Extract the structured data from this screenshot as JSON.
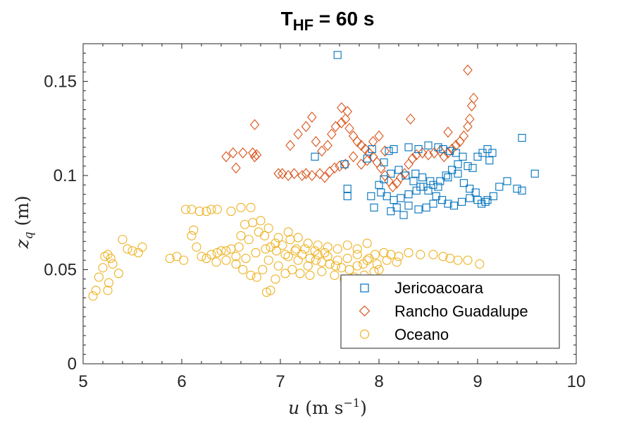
{
  "chart_data": {
    "type": "scatter",
    "title": {
      "main": "T",
      "sub": "HF",
      "rest": " = 60 s"
    },
    "xlabel": {
      "var": "u",
      "unit_open": " (m s",
      "exp": "−1",
      "unit_close": ")"
    },
    "ylabel": {
      "var": "z",
      "sub": "q",
      "unit": " (m)"
    },
    "xlim": [
      5,
      10
    ],
    "ylim": [
      0,
      0.17
    ],
    "xticks": [
      5,
      6,
      7,
      8,
      9,
      10
    ],
    "xtick_labels": [
      "5",
      "6",
      "7",
      "8",
      "9",
      "10"
    ],
    "yticks": [
      0,
      0.05,
      0.1,
      0.15
    ],
    "ytick_labels": [
      "0",
      "0.05",
      "0.1",
      "0.15"
    ],
    "grid": false,
    "legend_position": "bottom-right",
    "series": [
      {
        "name": "Jericoacoara",
        "marker": "square",
        "color": "#0072BD",
        "points": [
          [
            7.58,
            0.164
          ],
          [
            9.45,
            0.12
          ],
          [
            9.58,
            0.101
          ],
          [
            7.35,
            0.11
          ],
          [
            7.65,
            0.106
          ],
          [
            7.68,
            0.093
          ],
          [
            7.88,
            0.109
          ],
          [
            7.93,
            0.114
          ],
          [
            8.05,
            0.107
          ],
          [
            8.1,
            0.113
          ],
          [
            8.15,
            0.114
          ],
          [
            8.3,
            0.115
          ],
          [
            8.4,
            0.114
          ],
          [
            8.5,
            0.116
          ],
          [
            8.6,
            0.115
          ],
          [
            8.65,
            0.114
          ],
          [
            8.72,
            0.113
          ],
          [
            8.78,
            0.112
          ],
          [
            8.85,
            0.11
          ],
          [
            8.9,
            0.105
          ],
          [
            9.0,
            0.11
          ],
          [
            9.05,
            0.112
          ],
          [
            9.1,
            0.114
          ],
          [
            9.15,
            0.112
          ],
          [
            9.12,
            0.108
          ],
          [
            8.95,
            0.104
          ],
          [
            8.8,
            0.101
          ],
          [
            8.7,
            0.099
          ],
          [
            8.62,
            0.097
          ],
          [
            8.55,
            0.095
          ],
          [
            8.45,
            0.094
          ],
          [
            8.38,
            0.092
          ],
          [
            8.3,
            0.09
          ],
          [
            8.22,
            0.088
          ],
          [
            8.15,
            0.087
          ],
          [
            8.08,
            0.089
          ],
          [
            8.02,
            0.091
          ],
          [
            8.0,
            0.095
          ],
          [
            8.05,
            0.098
          ],
          [
            8.12,
            0.101
          ],
          [
            8.2,
            0.103
          ],
          [
            8.27,
            0.1
          ],
          [
            8.35,
            0.097
          ],
          [
            8.42,
            0.094
          ],
          [
            8.5,
            0.092
          ],
          [
            8.58,
            0.089
          ],
          [
            8.64,
            0.087
          ],
          [
            8.7,
            0.085
          ],
          [
            8.76,
            0.084
          ],
          [
            8.84,
            0.086
          ],
          [
            8.92,
            0.088
          ],
          [
            9.0,
            0.087
          ],
          [
            9.08,
            0.086
          ],
          [
            9.16,
            0.089
          ],
          [
            9.22,
            0.094
          ],
          [
            9.3,
            0.097
          ],
          [
            9.4,
            0.093
          ],
          [
            9.45,
            0.092
          ],
          [
            8.55,
            0.085
          ],
          [
            8.48,
            0.083
          ],
          [
            8.4,
            0.082
          ],
          [
            8.3,
            0.084
          ],
          [
            8.25,
            0.079
          ],
          [
            8.12,
            0.081
          ],
          [
            8.18,
            0.083
          ],
          [
            7.95,
            0.083
          ],
          [
            7.92,
            0.089
          ],
          [
            7.68,
            0.089
          ],
          [
            8.68,
            0.1
          ],
          [
            8.74,
            0.103
          ],
          [
            8.8,
            0.106
          ],
          [
            8.86,
            0.096
          ],
          [
            8.92,
            0.093
          ],
          [
            8.98,
            0.091
          ],
          [
            9.04,
            0.085
          ],
          [
            9.1,
            0.087
          ],
          [
            8.6,
            0.094
          ],
          [
            8.52,
            0.097
          ],
          [
            8.44,
            0.099
          ],
          [
            8.37,
            0.101
          ]
        ]
      },
      {
        "name": "Rancho Guadalupe",
        "marker": "diamond",
        "color": "#D95319",
        "points": [
          [
            6.45,
            0.11
          ],
          [
            6.52,
            0.112
          ],
          [
            6.55,
            0.104
          ],
          [
            6.62,
            0.112
          ],
          [
            6.72,
            0.112
          ],
          [
            6.74,
            0.11
          ],
          [
            6.76,
            0.111
          ],
          [
            6.74,
            0.127
          ],
          [
            6.98,
            0.101
          ],
          [
            7.02,
            0.101
          ],
          [
            7.08,
            0.1
          ],
          [
            7.14,
            0.101
          ],
          [
            7.22,
            0.1
          ],
          [
            7.26,
            0.101
          ],
          [
            7.32,
            0.1
          ],
          [
            7.4,
            0.101
          ],
          [
            7.45,
            0.099
          ],
          [
            7.5,
            0.102
          ],
          [
            7.55,
            0.104
          ],
          [
            7.6,
            0.105
          ],
          [
            7.66,
            0.106
          ],
          [
            7.42,
            0.113
          ],
          [
            7.36,
            0.118
          ],
          [
            7.48,
            0.116
          ],
          [
            7.52,
            0.122
          ],
          [
            7.56,
            0.126
          ],
          [
            7.62,
            0.128
          ],
          [
            7.66,
            0.13
          ],
          [
            7.7,
            0.125
          ],
          [
            7.74,
            0.121
          ],
          [
            7.78,
            0.118
          ],
          [
            7.82,
            0.116
          ],
          [
            7.86,
            0.114
          ],
          [
            7.9,
            0.112
          ],
          [
            7.94,
            0.11
          ],
          [
            7.98,
            0.107
          ],
          [
            8.02,
            0.104
          ],
          [
            8.06,
            0.1
          ],
          [
            8.1,
            0.097
          ],
          [
            8.14,
            0.094
          ],
          [
            8.18,
            0.096
          ],
          [
            8.22,
            0.099
          ],
          [
            8.26,
            0.101
          ],
          [
            8.3,
            0.106
          ],
          [
            8.34,
            0.109
          ],
          [
            8.38,
            0.111
          ],
          [
            8.44,
            0.112
          ],
          [
            8.5,
            0.111
          ],
          [
            8.56,
            0.112
          ],
          [
            8.62,
            0.113
          ],
          [
            8.66,
            0.11
          ],
          [
            8.7,
            0.112
          ],
          [
            8.74,
            0.114
          ],
          [
            8.78,
            0.116
          ],
          [
            8.82,
            0.118
          ],
          [
            8.86,
            0.121
          ],
          [
            8.9,
            0.126
          ],
          [
            8.92,
            0.13
          ],
          [
            8.94,
            0.137
          ],
          [
            8.96,
            0.141
          ],
          [
            8.9,
            0.156
          ],
          [
            8.32,
            0.13
          ],
          [
            8.7,
            0.123
          ],
          [
            7.62,
            0.136
          ],
          [
            7.68,
            0.134
          ],
          [
            7.1,
            0.116
          ],
          [
            7.18,
            0.122
          ],
          [
            7.26,
            0.126
          ],
          [
            7.32,
            0.131
          ],
          [
            7.74,
            0.11
          ],
          [
            7.82,
            0.106
          ],
          [
            7.88,
            0.108
          ],
          [
            7.94,
            0.118
          ],
          [
            8.0,
            0.121
          ],
          [
            8.06,
            0.113
          ]
        ]
      },
      {
        "name": "Oceano",
        "marker": "circle",
        "color": "#EDB120",
        "points": [
          [
            5.1,
            0.036
          ],
          [
            5.13,
            0.039
          ],
          [
            5.16,
            0.046
          ],
          [
            5.2,
            0.051
          ],
          [
            5.22,
            0.057
          ],
          [
            5.25,
            0.058
          ],
          [
            5.28,
            0.056
          ],
          [
            5.25,
            0.039
          ],
          [
            5.26,
            0.043
          ],
          [
            5.3,
            0.053
          ],
          [
            5.36,
            0.048
          ],
          [
            5.4,
            0.066
          ],
          [
            5.45,
            0.061
          ],
          [
            5.5,
            0.06
          ],
          [
            5.56,
            0.059
          ],
          [
            5.6,
            0.062
          ],
          [
            5.88,
            0.056
          ],
          [
            5.95,
            0.057
          ],
          [
            6.02,
            0.055
          ],
          [
            6.04,
            0.082
          ],
          [
            6.1,
            0.082
          ],
          [
            6.18,
            0.081
          ],
          [
            6.25,
            0.081
          ],
          [
            6.3,
            0.082
          ],
          [
            6.36,
            0.082
          ],
          [
            6.5,
            0.081
          ],
          [
            6.6,
            0.083
          ],
          [
            6.7,
            0.083
          ],
          [
            6.1,
            0.068
          ],
          [
            6.12,
            0.071
          ],
          [
            6.15,
            0.062
          ],
          [
            6.2,
            0.057
          ],
          [
            6.3,
            0.058
          ],
          [
            6.36,
            0.059
          ],
          [
            6.45,
            0.06
          ],
          [
            6.55,
            0.057
          ],
          [
            6.6,
            0.068
          ],
          [
            6.64,
            0.074
          ],
          [
            6.72,
            0.075
          ],
          [
            6.8,
            0.076
          ],
          [
            6.84,
            0.068
          ],
          [
            6.9,
            0.062
          ],
          [
            6.96,
            0.06
          ],
          [
            7.02,
            0.063
          ],
          [
            7.1,
            0.066
          ],
          [
            7.16,
            0.061
          ],
          [
            7.22,
            0.058
          ],
          [
            7.3,
            0.056
          ],
          [
            7.36,
            0.055
          ],
          [
            7.42,
            0.054
          ],
          [
            7.5,
            0.053
          ],
          [
            7.56,
            0.052
          ],
          [
            7.62,
            0.051
          ],
          [
            7.7,
            0.05
          ],
          [
            7.78,
            0.052
          ],
          [
            7.84,
            0.053
          ],
          [
            7.9,
            0.056
          ],
          [
            7.96,
            0.058
          ],
          [
            8.05,
            0.059
          ],
          [
            8.12,
            0.058
          ],
          [
            8.2,
            0.057
          ],
          [
            8.3,
            0.059
          ],
          [
            8.42,
            0.058
          ],
          [
            8.55,
            0.058
          ],
          [
            8.65,
            0.057
          ],
          [
            8.72,
            0.056
          ],
          [
            8.8,
            0.055
          ],
          [
            8.9,
            0.055
          ],
          [
            9.02,
            0.053
          ],
          [
            6.62,
            0.05
          ],
          [
            6.7,
            0.047
          ],
          [
            6.76,
            0.046
          ],
          [
            6.82,
            0.05
          ],
          [
            6.86,
            0.038
          ],
          [
            6.9,
            0.039
          ],
          [
            6.95,
            0.045
          ],
          [
            7.05,
            0.048
          ],
          [
            7.12,
            0.05
          ],
          [
            7.2,
            0.048
          ],
          [
            7.3,
            0.047
          ],
          [
            7.42,
            0.049
          ],
          [
            7.55,
            0.047
          ],
          [
            7.65,
            0.045
          ],
          [
            7.75,
            0.046
          ],
          [
            7.85,
            0.047
          ],
          [
            7.95,
            0.049
          ],
          [
            8.0,
            0.05
          ],
          [
            6.68,
            0.066
          ],
          [
            6.78,
            0.07
          ],
          [
            6.88,
            0.072
          ],
          [
            6.98,
            0.067
          ],
          [
            7.08,
            0.07
          ],
          [
            7.18,
            0.067
          ],
          [
            7.28,
            0.064
          ],
          [
            7.38,
            0.063
          ],
          [
            7.48,
            0.062
          ],
          [
            7.58,
            0.061
          ],
          [
            7.68,
            0.063
          ],
          [
            7.78,
            0.061
          ],
          [
            7.88,
            0.064
          ],
          [
            6.4,
            0.06
          ],
          [
            6.5,
            0.061
          ],
          [
            6.58,
            0.062
          ],
          [
            6.88,
            0.055
          ],
          [
            6.98,
            0.052
          ],
          [
            7.08,
            0.057
          ],
          [
            7.18,
            0.055
          ],
          [
            7.28,
            0.052
          ],
          [
            7.38,
            0.058
          ],
          [
            7.48,
            0.057
          ],
          [
            7.58,
            0.055
          ],
          [
            7.68,
            0.056
          ],
          [
            7.78,
            0.058
          ],
          [
            7.88,
            0.055
          ],
          [
            7.98,
            0.053
          ],
          [
            8.08,
            0.055
          ],
          [
            8.18,
            0.054
          ],
          [
            6.25,
            0.056
          ],
          [
            6.35,
            0.054
          ],
          [
            6.45,
            0.055
          ],
          [
            6.55,
            0.053
          ],
          [
            6.65,
            0.056
          ],
          [
            6.75,
            0.059
          ],
          [
            6.85,
            0.061
          ],
          [
            6.95,
            0.064
          ],
          [
            7.05,
            0.058
          ],
          [
            7.15,
            0.06
          ],
          [
            7.25,
            0.061
          ],
          [
            7.35,
            0.06
          ],
          [
            7.45,
            0.059
          ]
        ]
      }
    ]
  }
}
